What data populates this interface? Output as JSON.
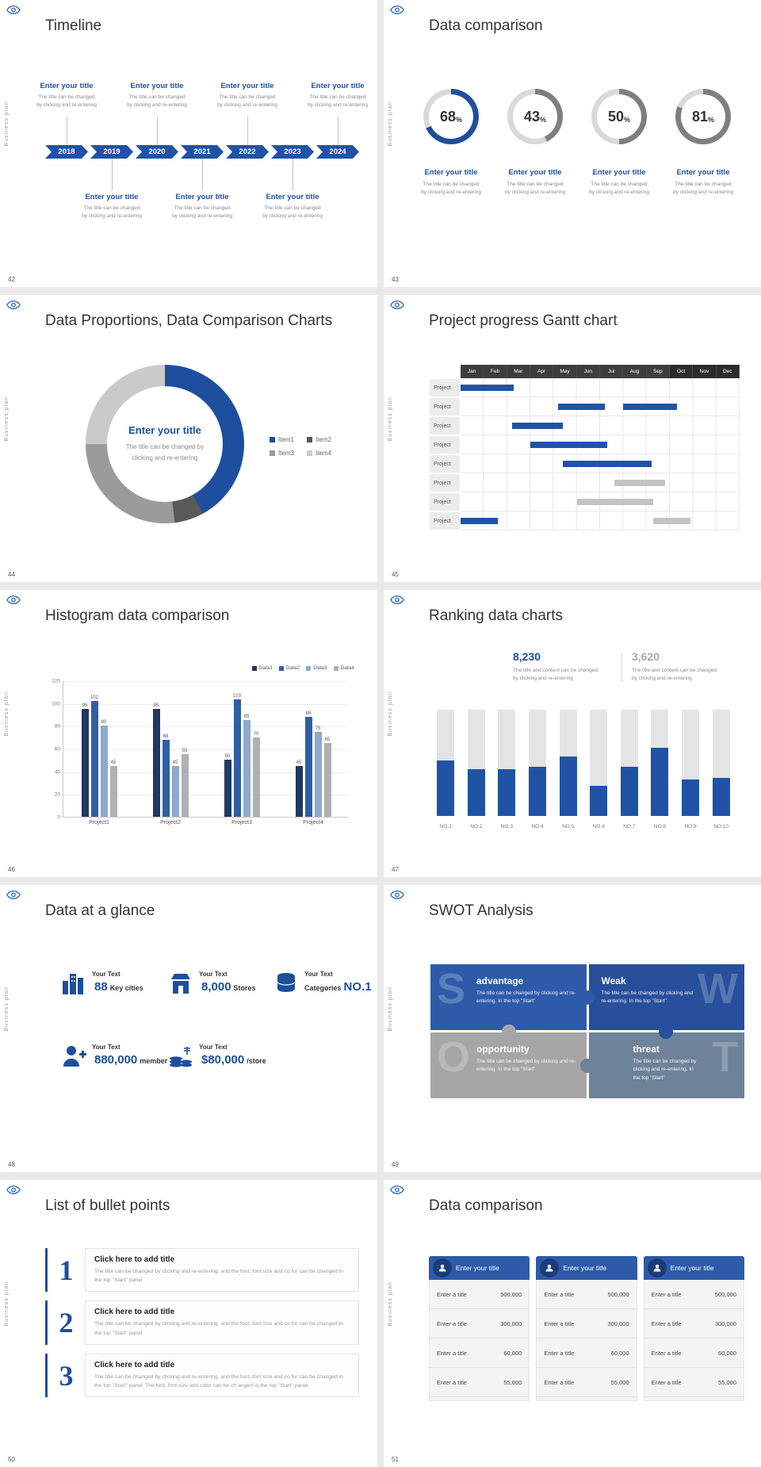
{
  "palette": {
    "primary": "#2053a5",
    "primary_dark": "#1d4f9e",
    "gray_bar": "#c3c3c3",
    "track_gray": "#e4e4e4",
    "ring_rest": "#d9d9d9"
  },
  "common": {
    "vertical_label": "Business plan"
  },
  "slides": {
    "s42": {
      "number": "42",
      "title": "Timeline",
      "years": [
        "2018",
        "2019",
        "2020",
        "2021",
        "2022",
        "2023",
        "2024"
      ],
      "entry_title": "Enter your title",
      "entry_desc": [
        "The title can be changed",
        "by clicking and re-entering"
      ],
      "top_positions": [
        0,
        2,
        4,
        6
      ],
      "bottom_positions": [
        1,
        3,
        5
      ]
    },
    "s43": {
      "number": "43",
      "title": "Data comparison",
      "item_title": "Enter your title",
      "item_desc": [
        "The title can be changed",
        "by clicking and re-entering"
      ],
      "items": [
        {
          "percent": 68,
          "color": "#1d4f9e"
        },
        {
          "percent": 43,
          "color": "#7f7f7f"
        },
        {
          "percent": 50,
          "color": "#7f7f7f"
        },
        {
          "percent": 81,
          "color": "#7f7f7f"
        }
      ]
    },
    "s44": {
      "number": "44",
      "title": "Data Proportions, Data Comparison Charts",
      "center_title": "Enter your title",
      "center_desc": [
        "The title can be changed by",
        "clicking and re-entering"
      ],
      "segments": [
        {
          "label": "Item1",
          "value": 42,
          "color": "#1d4f9e"
        },
        {
          "label": "Item2",
          "value": 6,
          "color": "#595959"
        },
        {
          "label": "Item3",
          "value": 27,
          "color": "#9b9b9b"
        },
        {
          "label": "Item4",
          "value": 25,
          "color": "#cacaca"
        }
      ]
    },
    "s45": {
      "number": "45",
      "title": "Project progress Gantt chart",
      "months": [
        "Jan",
        "Feb",
        "Mar",
        "Apr",
        "May",
        "Jun",
        "Jul",
        "Aug",
        "Sep",
        "Oct",
        "Nov",
        "Dec"
      ],
      "row_label": "Project",
      "rows": [
        {
          "bars": [
            {
              "start": 0,
              "end": 2.3,
              "color": "blue"
            }
          ]
        },
        {
          "bars": [
            {
              "start": 4.2,
              "end": 6.2,
              "color": "blue"
            },
            {
              "start": 7,
              "end": 9.3,
              "color": "blue"
            }
          ]
        },
        {
          "bars": [
            {
              "start": 2.2,
              "end": 4.4,
              "color": "blue"
            }
          ]
        },
        {
          "bars": [
            {
              "start": 3,
              "end": 6.3,
              "color": "blue"
            }
          ]
        },
        {
          "bars": [
            {
              "start": 4.4,
              "end": 8.2,
              "color": "blue"
            }
          ]
        },
        {
          "bars": [
            {
              "start": 6.6,
              "end": 8.8,
              "color": "gray"
            }
          ]
        },
        {
          "bars": [
            {
              "start": 5,
              "end": 8.3,
              "color": "gray"
            }
          ]
        },
        {
          "bars": [
            {
              "start": 0,
              "end": 1.6,
              "color": "blue"
            },
            {
              "start": 8.3,
              "end": 9.9,
              "color": "gray"
            }
          ]
        }
      ]
    },
    "s46": {
      "number": "46",
      "title": "Histogram data comparison",
      "chart": {
        "type": "bar",
        "categories": [
          "Project1",
          "Project2",
          "Project3",
          "Project4"
        ],
        "series": [
          {
            "name": "Data1",
            "color": "#1f3864",
            "values": [
              95,
              95,
              50,
              45
            ]
          },
          {
            "name": "Data2",
            "color": "#2e5fa5",
            "values": [
              102,
              68,
              103,
              88
            ]
          },
          {
            "name": "Data3",
            "color": "#8ea9cf",
            "values": [
              80,
              45,
              85,
              75
            ]
          },
          {
            "name": "Data4",
            "color": "#b0b0b0",
            "values": [
              45,
              55,
              70,
              65
            ]
          }
        ],
        "ymax": 120,
        "yticks": [
          0,
          20,
          40,
          60,
          80,
          100,
          120
        ]
      }
    },
    "s47": {
      "number": "47",
      "title": "Ranking data charts",
      "stat1": {
        "value": "8,230",
        "desc": [
          "The title and content can be changed",
          "by clicking and re-entering"
        ]
      },
      "stat2": {
        "value": "3,620",
        "desc": [
          "The title and content can be changed",
          "by clicking and re-entering"
        ]
      },
      "bars": {
        "type": "bar",
        "categories": [
          "NO.1",
          "NO.2",
          "NO.3",
          "NO.4",
          "NO.5",
          "NO.6",
          "NO.7",
          "NO.8",
          "NO.9",
          "NO.10"
        ],
        "values": [
          52,
          44,
          44,
          46,
          56,
          28,
          46,
          64,
          34,
          36
        ],
        "max": 100
      }
    },
    "s48": {
      "number": "48",
      "title": "Data at a glance",
      "stats": [
        {
          "icon": "buildings",
          "label": "Your Text",
          "value": "88",
          "unit": "Key cities"
        },
        {
          "icon": "store",
          "label": "Your Text",
          "value": "8,000",
          "unit": "Stores"
        },
        {
          "icon": "database",
          "label": "Your Text",
          "prefix": "Categories",
          "value": "NO.1",
          "unit": ""
        },
        {
          "icon": "member",
          "label": "Your Text",
          "value": "880,000",
          "unit": "member"
        },
        {
          "icon": "coins",
          "label": "Your Text",
          "value": "$80,000",
          "unit": "/store"
        }
      ]
    },
    "s49": {
      "number": "49",
      "title": "SWOT Analysis",
      "quadrants": [
        {
          "letter": "S",
          "name": "advantage",
          "desc": "The title can be changed by clicking and re-entering. In the top \"Start\"",
          "color": "#2d5ba9"
        },
        {
          "letter": "W",
          "name": "Weak",
          "desc": "The title can be changed by clicking and re-entering. In the top \"Start\"",
          "color": "#274f9b"
        },
        {
          "letter": "O",
          "name": "opportunity",
          "desc": "The title can be changed by clicking and re-entering. In the top \"Start\"",
          "color": "#a6a6a6"
        },
        {
          "letter": "T",
          "name": "threat",
          "desc": "The title can be changed by clicking and re-entering. In the top \"Start\"",
          "color": "#6e8299"
        }
      ]
    },
    "s50": {
      "number": "50",
      "title": "List of bullet points",
      "items": [
        {
          "num": "1",
          "title": "Click here to add title",
          "desc": "The title can be changed by clicking and re-entering, and the font, font size and co for can be changed in the top \"Start\" panel"
        },
        {
          "num": "2",
          "title": "Click here to add title",
          "desc": "The title can be changed by clicking and re-entering, and the font, font size and co for can be changed in the top \"Start\" panel"
        },
        {
          "num": "3",
          "title": "Click here to add title",
          "desc": "The title can be changed by clicking and re-entering, and the font, font size and co for can be changed in the top \"Start\" panel. The font, font size and color can be ch anged in the top \"Start\" panel."
        }
      ]
    },
    "s51": {
      "number": "51",
      "title": "Data comparison",
      "columns": [
        {
          "header": "Enter your title",
          "rows": [
            [
              "Enter a title",
              "500,000"
            ],
            [
              "Enter a title",
              "300,000"
            ],
            [
              "Enter a title",
              "60,000"
            ],
            [
              "Enter a title",
              "55,000"
            ]
          ]
        },
        {
          "header": "Enter your title",
          "rows": [
            [
              "Enter a title",
              "500,000"
            ],
            [
              "Enter a title",
              "300,000"
            ],
            [
              "Enter a title",
              "60,000"
            ],
            [
              "Enter a title",
              "55,000"
            ]
          ]
        },
        {
          "header": "Enter your title",
          "rows": [
            [
              "Enter a title",
              "500,000"
            ],
            [
              "Enter a title",
              "300,000"
            ],
            [
              "Enter a title",
              "60,000"
            ],
            [
              "Enter a title",
              "55,000"
            ]
          ]
        }
      ]
    }
  }
}
